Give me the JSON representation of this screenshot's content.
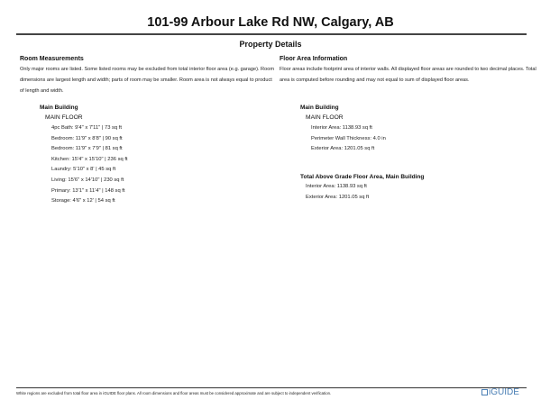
{
  "title": "101-99 Arbour Lake Rd NW, Calgary, AB",
  "subtitle": "Property Details",
  "left": {
    "heading": "Room Measurements",
    "paragraph": "Only major rooms are listed. Some listed rooms may be excluded from total interior floor area (e.g. garage). Room dimensions are largest length and width; parts of room may be smaller. Room area is not always equal to product of length and width.",
    "building": "Main Building",
    "floor": "MAIN FLOOR",
    "rooms": [
      "4pc Bath: 9'4\" x 7'11\" | 73 sq ft",
      "Bedroom: 11'9\" x 8'8\" | 90 sq ft",
      "Bedroom: 11'9\" x 7'9\" | 81 sq ft",
      "Kitchen: 15'4\" x 15'10\" | 236 sq ft",
      "Laundry: 5'10\" x 8' | 45 sq ft",
      "Living: 15'6\" x 14'10\" | 230 sq ft",
      "Primary: 13'1\" x 11'4\" | 148 sq ft",
      "Storage: 4'6\" x 12' | 54 sq ft"
    ]
  },
  "right": {
    "heading": "Floor Area Information",
    "paragraph": "Floor areas include footprint area of interior walls. All displayed floor areas are rounded to two decimal places. Total area is computed before rounding and may not equal to sum of displayed floor areas.",
    "building": "Main Building",
    "floor": "MAIN FLOOR",
    "items": [
      "Interior Area: 1138.93 sq ft",
      "Perimeter Wall Thickness: 4.0 in",
      "Exterior Area: 1201.05 sq ft"
    ],
    "total_heading": "Total Above Grade Floor Area, Main Building",
    "total_items": [
      "Interior Area: 1138.93 sq ft",
      "Exterior Area: 1201.05 sq ft"
    ]
  },
  "footer": {
    "text": "White regions are excluded from total floor area in iGUIDE floor plans. All room dimensions and floor areas must be considered approximate and are subject to independent verification.",
    "logo": "iGUIDE"
  },
  "colors": {
    "logo": "#4a7fb5"
  }
}
